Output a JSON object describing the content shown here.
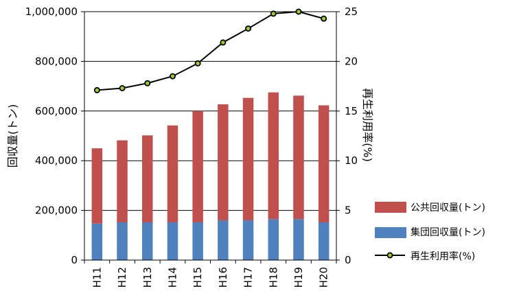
{
  "chart_data": {
    "type": "bar",
    "categories": [
      "H11",
      "H12",
      "H13",
      "H14",
      "H15",
      "H16",
      "H17",
      "H18",
      "H19",
      "H20"
    ],
    "series": [
      {
        "name": "集団回収量(トン)",
        "kind": "stacked-bar",
        "axis": "left",
        "color": "#4f81bd",
        "values": [
          147000,
          152000,
          152000,
          152000,
          152000,
          160000,
          160000,
          165000,
          165000,
          152000
        ]
      },
      {
        "name": "公共回収量(トン)",
        "kind": "stacked-bar",
        "axis": "left",
        "color": "#c0504d",
        "values": [
          303000,
          330000,
          350000,
          390000,
          448000,
          467000,
          493000,
          510000,
          497000,
          471000
        ]
      },
      {
        "name": "再生利用率(%)",
        "kind": "line",
        "axis": "right",
        "color": "#000000",
        "marker_color": "#9acd32",
        "values": [
          17.1,
          17.3,
          17.8,
          18.5,
          19.8,
          21.9,
          23.3,
          24.8,
          25.0,
          24.3
        ]
      }
    ],
    "yleft": {
      "label": "回収量(トン)",
      "ylim": [
        0,
        1000000
      ],
      "ticks": [
        0,
        200000,
        400000,
        600000,
        800000,
        1000000
      ],
      "tick_labels": [
        "0",
        "200,000",
        "400,000",
        "600,000",
        "800,000",
        "1,000,000"
      ]
    },
    "yright": {
      "label": "再生利用率(%)",
      "ylim": [
        0,
        25
      ],
      "ticks": [
        0,
        5,
        10,
        15,
        20,
        25
      ],
      "tick_labels": [
        "0",
        "5",
        "10",
        "15",
        "20",
        "25"
      ]
    },
    "legend_order": [
      "公共回収量(トン)",
      "集団回収量(トン)",
      "再生利用率(%)"
    ],
    "legend_position": "right",
    "grid": true
  }
}
